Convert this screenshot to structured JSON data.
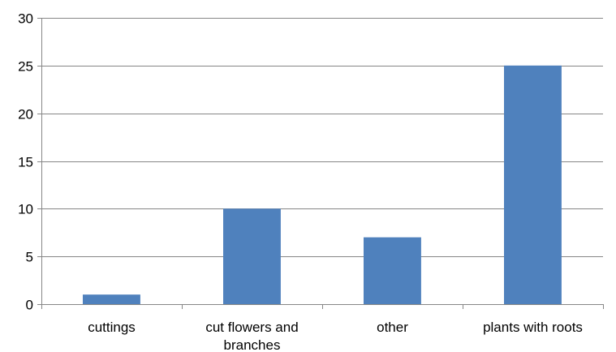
{
  "chart_data": {
    "type": "bar",
    "categories": [
      "cuttings",
      "cut flowers and branches",
      "other",
      "plants with roots"
    ],
    "category_label_lines": [
      [
        "cuttings"
      ],
      [
        "cut flowers and",
        "branches"
      ],
      [
        "other"
      ],
      [
        "plants with roots"
      ]
    ],
    "values": [
      1,
      10,
      7,
      25
    ],
    "ylim": [
      0,
      30
    ],
    "yticks": [
      0,
      5,
      10,
      15,
      20,
      25,
      30
    ],
    "grid": true,
    "legend": "none",
    "bar_color": "#4f81bd",
    "grid_color": "#868686",
    "axis_color": "#868686"
  }
}
